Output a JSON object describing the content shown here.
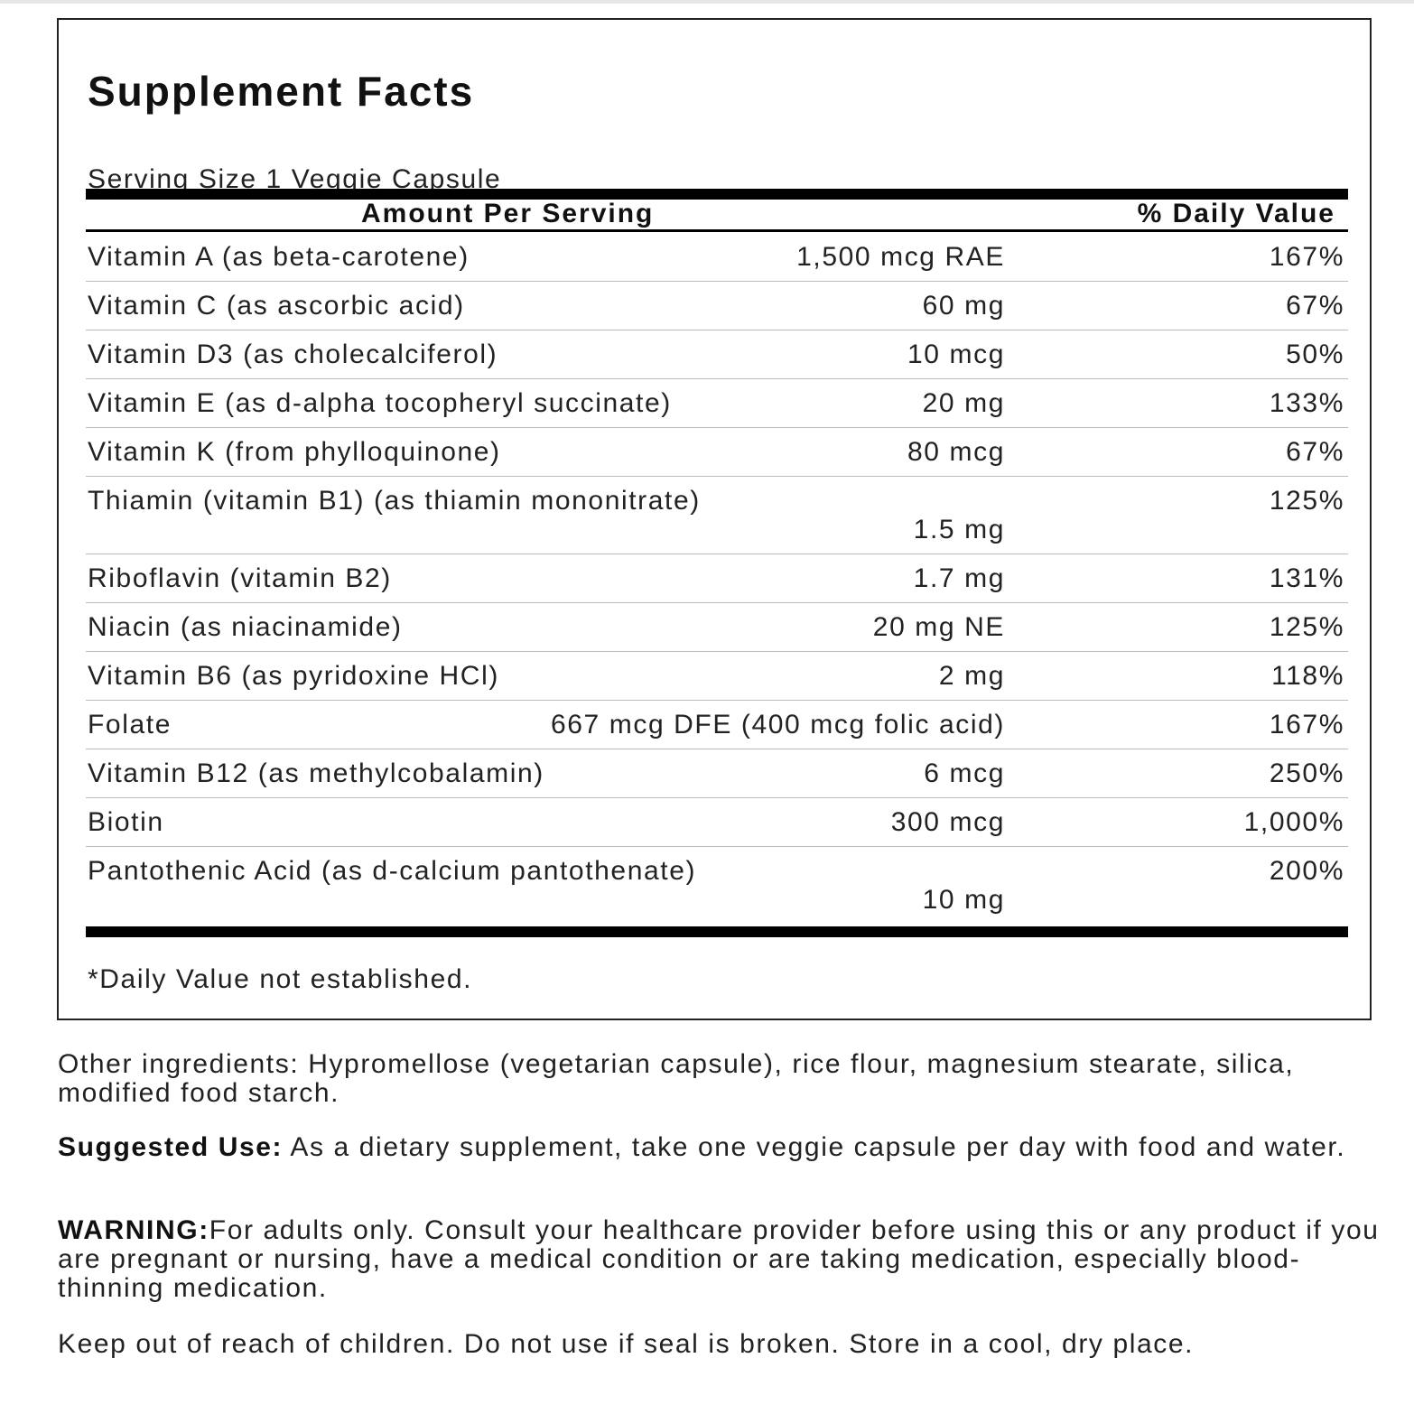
{
  "title": "Supplement Facts",
  "serving_size": "Serving Size 1 Veggie Capsule",
  "header": {
    "amount": "Amount Per Serving",
    "daily_value": "% Daily Value"
  },
  "rows": [
    {
      "name": "Vitamin A (as beta-carotene)",
      "amount": "1,500 mcg RAE",
      "dv": "167%"
    },
    {
      "name": "Vitamin C (as ascorbic acid)",
      "amount": "60 mg",
      "dv": "67%"
    },
    {
      "name": "Vitamin D3 (as cholecalciferol)",
      "amount": "10 mcg",
      "dv": "50%"
    },
    {
      "name": "Vitamin E (as d-alpha tocopheryl succinate)",
      "amount": "20 mg",
      "dv": "133%"
    },
    {
      "name": "Vitamin K (from phylloquinone)",
      "amount": "80 mcg",
      "dv": "67%"
    },
    {
      "name": "Thiamin (vitamin B1) (as thiamin mononitrate)",
      "amount": "1.5 mg",
      "dv": "125%"
    },
    {
      "name": "Riboflavin (vitamin B2)",
      "amount": "1.7 mg",
      "dv": "131%"
    },
    {
      "name": "Niacin (as niacinamide)",
      "amount": "20 mg NE",
      "dv": "125%"
    },
    {
      "name": "Vitamin B6 (as pyridoxine HCl)",
      "amount": "2 mg",
      "dv": "118%"
    },
    {
      "name": "Folate",
      "amount": "667 mcg DFE (400 mcg folic acid)",
      "dv": "167%"
    },
    {
      "name": "Vitamin B12 (as methylcobalamin)",
      "amount": "6 mcg",
      "dv": "250%"
    },
    {
      "name": "Biotin",
      "amount": "300 mcg",
      "dv": "1,000%"
    },
    {
      "name": "Pantothenic Acid (as d-calcium pantothenate)",
      "amount": "10 mg",
      "dv": "200%"
    }
  ],
  "footnote": "*Daily Value not established.",
  "other_ingredients": "Other ingredients: Hypromellose (vegetarian capsule), rice flour, magnesium stearate, silica, modified food starch.",
  "suggested_use": {
    "label": "Suggested Use:",
    "text": " As a dietary supplement, take one veggie capsule per day with food and water."
  },
  "warning": {
    "label": "WARNING:",
    "text": "For adults only. Consult your healthcare provider before using this or any product if you are pregnant or nursing, have a medical condition or are taking medication, especially blood-thinning medication."
  },
  "storage": "Keep out of reach of children. Do not use if seal is broken. Store in a cool, dry place."
}
